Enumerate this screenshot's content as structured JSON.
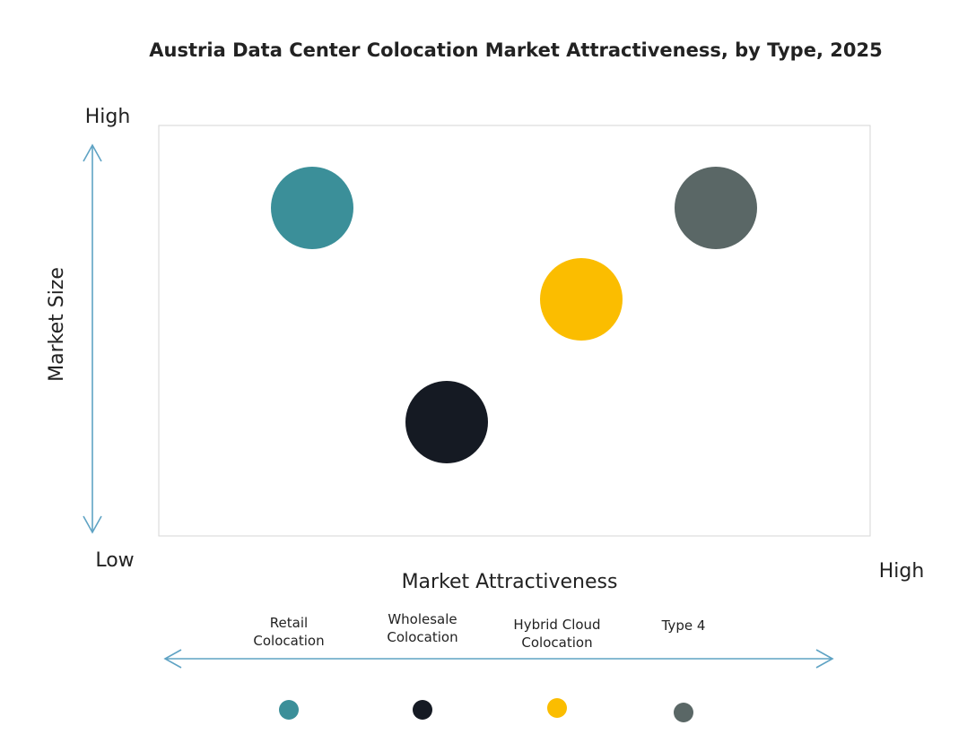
{
  "header": {
    "title": "Austria Data Center Colocation Market Attractiveness,  by Type, 2025"
  },
  "axes": {
    "y_label": "Market Size",
    "y_high": "High",
    "y_low": "Low",
    "x_label": "Market Attractiveness",
    "x_high": "High"
  },
  "nodes": [
    {
      "label": [
        "Retail",
        "Colocation"
      ],
      "color": "#3b8f99"
    },
    {
      "label": [
        "Wholesale",
        "Colocation"
      ],
      "color": "#151a23"
    },
    {
      "label": [
        "Hybrid Cloud",
        "Colocation"
      ],
      "color": "#fbbd00"
    },
    {
      "label": [
        "Type 4"
      ],
      "color": "#5a6766"
    }
  ]
}
